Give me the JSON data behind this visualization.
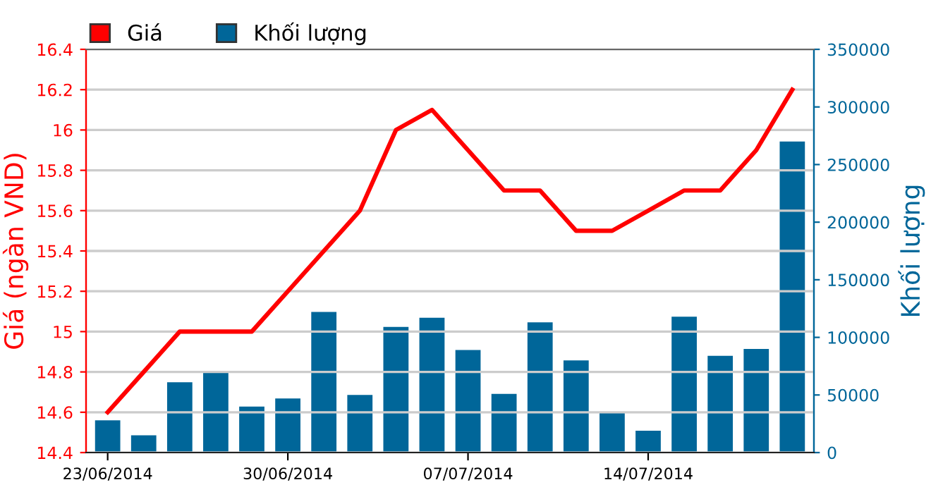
{
  "chart_data": {
    "type": "bar",
    "categories": [
      "23/06/2014",
      null,
      null,
      null,
      null,
      "30/06/2014",
      null,
      null,
      null,
      null,
      "07/07/2014",
      null,
      null,
      null,
      null,
      "14/07/2014",
      null,
      null,
      null,
      null
    ],
    "series": [
      {
        "name": "Giá",
        "type": "line",
        "color": "#ff0000",
        "values": [
          14.6,
          14.8,
          15.0,
          15.0,
          15.0,
          15.2,
          15.4,
          15.6,
          16.0,
          16.1,
          15.9,
          15.7,
          15.7,
          15.5,
          15.5,
          15.6,
          15.7,
          15.7,
          15.9,
          16.2
        ]
      },
      {
        "name": "Khối lượng",
        "axis": "y2",
        "color": "#006699",
        "values": [
          28000,
          15000,
          61000,
          70000,
          40000,
          47000,
          122000,
          50000,
          109000,
          117000,
          89000,
          51000,
          113000,
          80000,
          35000,
          19000,
          118000,
          84000,
          90000,
          270000
        ]
      }
    ],
    "ylabel": "Giá (ngàn VND)",
    "y2label": "Khối lượng",
    "ylim": [
      14.4,
      16.4
    ],
    "yticks": [
      {
        "value": 14.4,
        "label": "14.4"
      },
      {
        "value": 14.6,
        "label": "14.6"
      },
      {
        "value": 14.8,
        "label": "14.8"
      },
      {
        "value": 15.0,
        "label": "15"
      },
      {
        "value": 15.2,
        "label": "15.2"
      },
      {
        "value": 15.4,
        "label": "15.4"
      },
      {
        "value": 15.6,
        "label": "15.6"
      },
      {
        "value": 15.8,
        "label": "15.8"
      },
      {
        "value": 16.0,
        "label": "16"
      },
      {
        "value": 16.2,
        "label": "16.2"
      },
      {
        "value": 16.4,
        "label": "16.4"
      }
    ],
    "y2lim": [
      0,
      350000
    ],
    "y2ticks": [
      0,
      50000,
      100000,
      150000,
      200000,
      250000,
      300000,
      350000
    ],
    "grid": "y",
    "legend": "top left",
    "line_style": "solid",
    "marker": "none"
  }
}
